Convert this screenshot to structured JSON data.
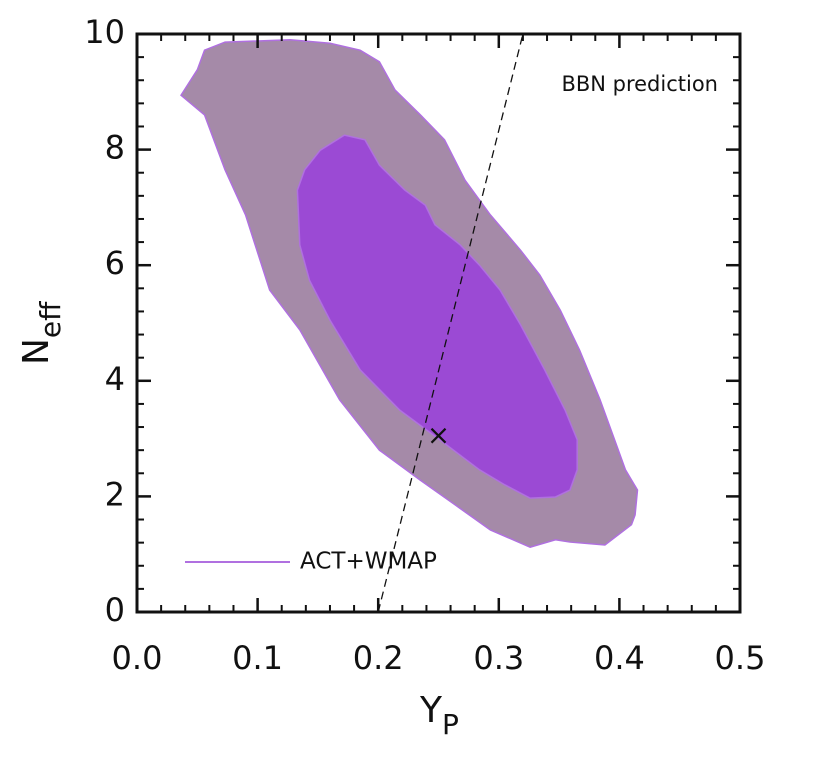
{
  "chart_data": {
    "type": "contour",
    "xlabel": "Y",
    "xlabel_sub": "P",
    "ylabel": "N",
    "ylabel_sub": "eff",
    "xlim": [
      0,
      0.5
    ],
    "ylim": [
      0,
      10
    ],
    "xticks": [
      {
        "value": 0,
        "label": "0.0"
      },
      0.1,
      0.2,
      0.3,
      0.4,
      0.5
    ],
    "yticks": [
      0,
      2,
      4,
      6,
      8,
      10
    ],
    "minor_divisions": 5,
    "series": [
      {
        "name": "ACT+WMAP",
        "color": "#b070e0",
        "contours": [
          {
            "fill": "#a58aa8",
            "x": [
              0.0365,
              0.05,
              0.056,
              0.073,
              0.127,
              0.16,
              0.185,
              0.201,
              0.214,
              0.235,
              0.255,
              0.272,
              0.293,
              0.318,
              0.334,
              0.351,
              0.367,
              0.384,
              0.396,
              0.405,
              0.415,
              0.413,
              0.41,
              0.388,
              0.359,
              0.347,
              0.326,
              0.293,
              0.264,
              0.235,
              0.201,
              0.168,
              0.135,
              0.11,
              0.09,
              0.073,
              0.056
            ],
            "y": [
              8.94,
              9.38,
              9.72,
              9.86,
              9.9,
              9.84,
              9.72,
              9.52,
              9.03,
              8.6,
              8.17,
              7.47,
              6.87,
              6.26,
              5.83,
              5.22,
              4.53,
              3.67,
              2.98,
              2.46,
              2.11,
              1.68,
              1.51,
              1.16,
              1.21,
              1.25,
              1.12,
              1.42,
              1.85,
              2.28,
              2.8,
              3.67,
              4.88,
              5.57,
              6.87,
              7.65,
              8.6
            ]
          },
          {
            "fill": "#9b4ad4",
            "x": [
              0.152,
              0.172,
              0.189,
              0.201,
              0.222,
              0.239,
              0.247,
              0.268,
              0.284,
              0.301,
              0.318,
              0.338,
              0.355,
              0.365,
              0.365,
              0.359,
              0.347,
              0.326,
              0.305,
              0.284,
              0.251,
              0.218,
              0.185,
              0.16,
              0.143,
              0.135,
              0.133,
              0.139
            ],
            "y": [
              7.99,
              8.25,
              8.17,
              7.73,
              7.3,
              7.04,
              6.7,
              6.35,
              6.0,
              5.57,
              4.97,
              4.19,
              3.49,
              2.98,
              2.46,
              2.11,
              1.99,
              1.97,
              2.2,
              2.46,
              2.98,
              3.49,
              4.19,
              5.05,
              5.74,
              6.35,
              7.3,
              7.65
            ]
          }
        ]
      }
    ],
    "prediction": {
      "label": "BBN prediction",
      "x": [
        0.2,
        0.32
      ],
      "y": [
        0,
        10
      ]
    },
    "marker": {
      "x": 0.25,
      "y": 3.05
    }
  }
}
